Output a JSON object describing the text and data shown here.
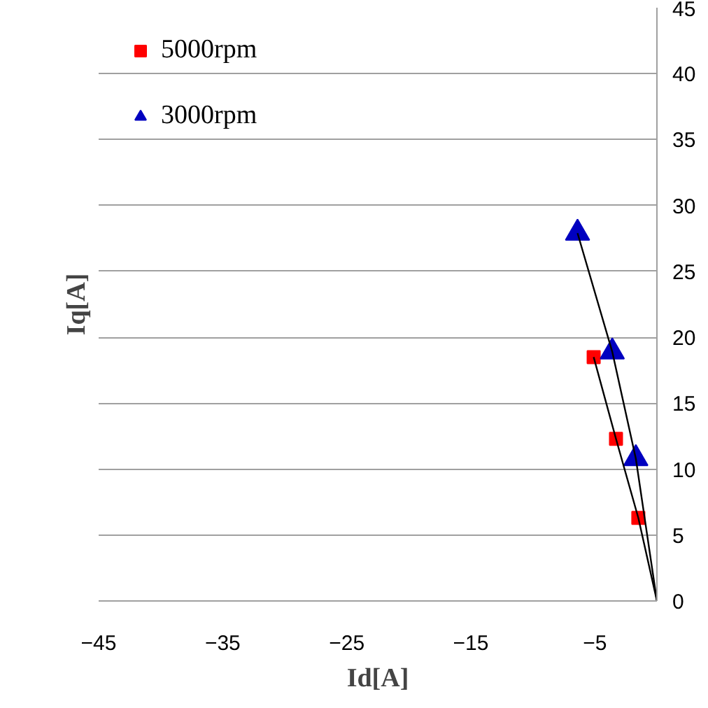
{
  "chart_data": {
    "type": "scatter",
    "xlabel": "Id[A]",
    "ylabel": "Iq[A]",
    "xlim": [
      -45,
      0
    ],
    "ylim": [
      0,
      45
    ],
    "xticks": [
      -45,
      -35,
      -25,
      -15,
      -5
    ],
    "yticks": [
      0,
      5,
      10,
      15,
      20,
      25,
      30,
      35,
      40,
      45
    ],
    "grid": "y",
    "legend": "top left",
    "series": [
      {
        "name": "5000rpm",
        "color": "#ff0000",
        "marker": "square",
        "x": [
          -5.1,
          -3.3,
          -1.5
        ],
        "values": [
          18.5,
          12.3,
          6.3
        ]
      },
      {
        "name": "3000rpm",
        "color": "#0000c0",
        "marker": "triangle",
        "x": [
          -6.4,
          -3.6,
          -1.7
        ],
        "values": [
          27.9,
          18.9,
          10.8
        ]
      },
      {
        "type": "line",
        "color": "#000000",
        "x": [
          -5.1,
          -3.3,
          -1.5,
          0
        ],
        "values": [
          18.5,
          12.3,
          6.3,
          0
        ]
      },
      {
        "type": "line",
        "color": "#000000",
        "x": [
          -6.4,
          -3.6,
          -1.7,
          0
        ],
        "values": [
          27.9,
          18.9,
          10.8,
          0
        ]
      }
    ]
  }
}
